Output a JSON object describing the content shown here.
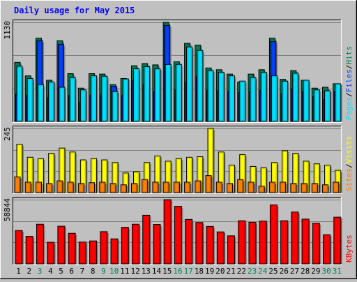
{
  "chart_data": {
    "title": "Daily usage for May 2015",
    "categories": [
      "1",
      "2",
      "3",
      "4",
      "5",
      "6",
      "7",
      "8",
      "9",
      "10",
      "11",
      "12",
      "13",
      "14",
      "15",
      "16",
      "17",
      "18",
      "19",
      "20",
      "21",
      "22",
      "23",
      "24",
      "25",
      "26",
      "27",
      "28",
      "29",
      "30",
      "31"
    ],
    "weekend_days": [
      "3",
      "9",
      "10",
      "16",
      "17",
      "23",
      "24",
      "30",
      "31"
    ],
    "colors": {
      "background": "#c0c0c0",
      "hits": "#00805c",
      "files": "#0040ff",
      "pages": "#00e0ff",
      "visits": "#ffff00",
      "sites": "#ff8000",
      "kbytes": "#ff0000",
      "title": "#0000ff",
      "weekday_label": "#000000",
      "weekend_label": "#00805c"
    },
    "charts": [
      {
        "type": "bar",
        "max_label": "1130",
        "ylim": [
          0,
          1130
        ],
        "legend": [
          "Pages",
          "Files",
          "Hits"
        ],
        "series": [
          {
            "name": "Hits",
            "color_key": "hits",
            "values": [
              674,
              520,
              950,
              470,
              920,
              545,
              380,
              545,
              540,
              420,
              490,
              635,
              660,
              645,
              1130,
              680,
              890,
              870,
              610,
              590,
              540,
              450,
              540,
              590,
              950,
              480,
              580,
              470,
              380,
              390,
              430
            ]
          },
          {
            "name": "Files",
            "color_key": "files",
            "values": [
              310,
              300,
              920,
              270,
              880,
              300,
              220,
              300,
              310,
              400,
              300,
              470,
              420,
              340,
              1095,
              360,
              445,
              510,
              355,
              350,
              340,
              330,
              340,
              355,
              910,
              315,
              370,
              340,
              280,
              250,
              340
            ]
          },
          {
            "name": "Pages",
            "color_key": "pages",
            "values": [
              630,
              490,
              420,
              450,
              390,
              500,
              360,
              520,
              515,
              340,
              485,
              600,
              625,
              600,
              650,
              650,
              850,
              810,
              580,
              560,
              520,
              460,
              500,
              560,
              520,
              460,
              550,
              470,
              360,
              350,
              430
            ]
          }
        ]
      },
      {
        "type": "bar",
        "max_label": "245",
        "ylim": [
          0,
          245
        ],
        "legend": [
          "Sites",
          "Visits"
        ],
        "series": [
          {
            "name": "Visits",
            "color_key": "visits",
            "values": [
              185,
              135,
              130,
              150,
              170,
              155,
              125,
              130,
              125,
              115,
              75,
              80,
              115,
              140,
              120,
              130,
              135,
              137,
              245,
              155,
              105,
              145,
              100,
              95,
              115,
              160,
              150,
              120,
              110,
              105,
              85
            ]
          },
          {
            "name": "Sites",
            "color_key": "sites",
            "values": [
              60,
              40,
              40,
              35,
              45,
              40,
              35,
              38,
              40,
              35,
              30,
              35,
              50,
              40,
              40,
              40,
              40,
              45,
              65,
              40,
              35,
              50,
              40,
              25,
              40,
              40,
              35,
              35,
              35,
              30,
              40
            ]
          }
        ]
      },
      {
        "type": "bar",
        "max_label": "58844",
        "ylim": [
          0,
          58844
        ],
        "legend": [
          "KBytes"
        ],
        "series": [
          {
            "name": "KBytes",
            "color_key": "kbytes",
            "values": [
              30500,
              25200,
              36300,
              19800,
              34500,
              28000,
              20000,
              21000,
              29500,
              22900,
              33500,
              36300,
              44500,
              36100,
              58844,
              52700,
              40700,
              37900,
              34300,
              29300,
              25700,
              39500,
              38100,
              39200,
              54000,
              39500,
              47500,
              41000,
              37300,
              26700,
              42800
            ]
          }
        ]
      }
    ]
  }
}
